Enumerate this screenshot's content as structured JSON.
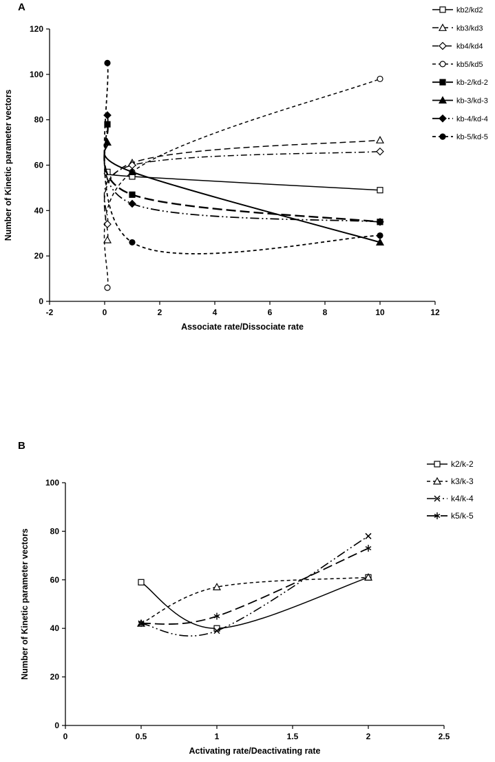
{
  "figure": {
    "panels": [
      {
        "label": "A"
      },
      {
        "label": "B"
      }
    ]
  },
  "chart_data": [
    {
      "type": "line",
      "panel": "A",
      "title": "",
      "xlabel": "Associate rate/Dissociate rate",
      "ylabel": "Number of Kinetic parameter vectors",
      "xlim": [
        -2,
        12
      ],
      "ylim": [
        0,
        120
      ],
      "xticks": [
        -2,
        0,
        2,
        4,
        6,
        8,
        10,
        12
      ],
      "yticks": [
        0,
        20,
        40,
        60,
        80,
        100,
        120
      ],
      "x": [
        0.1,
        1,
        10
      ],
      "grid": false,
      "legend_position": "top-right",
      "series": [
        {
          "name": "kb2/kd2",
          "values": [
            57,
            55,
            49
          ],
          "marker": "square-open",
          "dash": "solid",
          "width": 1.5
        },
        {
          "name": "kb3/kd3",
          "values": [
            27,
            61,
            71
          ],
          "marker": "triangle-open",
          "dash": "mediumdash",
          "width": 1.5
        },
        {
          "name": "kb4/kd4",
          "values": [
            34,
            60,
            66
          ],
          "marker": "diamond-open",
          "dash": "dashdot",
          "width": 1.5
        },
        {
          "name": "kb5/kd5",
          "values": [
            6,
            57,
            98
          ],
          "marker": "circle-open",
          "dash": "dash",
          "width": 1.5
        },
        {
          "name": "kb-2/kd-2",
          "values": [
            78,
            47,
            35
          ],
          "marker": "square-filled",
          "dash": "longdash",
          "width": 2.4
        },
        {
          "name": "kb-3/kd-3",
          "values": [
            70,
            57,
            26
          ],
          "marker": "triangle-filled",
          "dash": "solid",
          "width": 2.0
        },
        {
          "name": "kb-4/kd-4",
          "values": [
            82,
            43,
            35
          ],
          "marker": "diamond-filled",
          "dash": "dashdotdot",
          "width": 1.8
        },
        {
          "name": "kb-5/kd-5",
          "values": [
            105,
            26,
            29
          ],
          "marker": "circle-filled",
          "dash": "dash",
          "width": 1.8
        }
      ]
    },
    {
      "type": "line",
      "panel": "B",
      "title": "",
      "xlabel": "Activating rate/Deactivating rate",
      "ylabel": "Number of Kinetic parameter vectors",
      "xlim": [
        0,
        2.5
      ],
      "ylim": [
        0,
        100
      ],
      "xticks": [
        0,
        0.5,
        1,
        1.5,
        2,
        2.5
      ],
      "yticks": [
        0,
        20,
        40,
        60,
        80,
        100
      ],
      "x": [
        0.5,
        1,
        2
      ],
      "grid": false,
      "legend_position": "top-right",
      "series": [
        {
          "name": "k2/k-2",
          "values": [
            59,
            40,
            61
          ],
          "marker": "square-open",
          "dash": "solid",
          "width": 1.5
        },
        {
          "name": "k3/k-3",
          "values": [
            42,
            57,
            61
          ],
          "marker": "triangle-open",
          "dash": "dash",
          "width": 1.5
        },
        {
          "name": "k4/k-4",
          "values": [
            42,
            39,
            78
          ],
          "marker": "x",
          "dash": "dashdotdot",
          "width": 1.6
        },
        {
          "name": "k5/k-5",
          "values": [
            42,
            45,
            73
          ],
          "marker": "asterisk",
          "dash": "longdash",
          "width": 1.8
        }
      ]
    }
  ]
}
